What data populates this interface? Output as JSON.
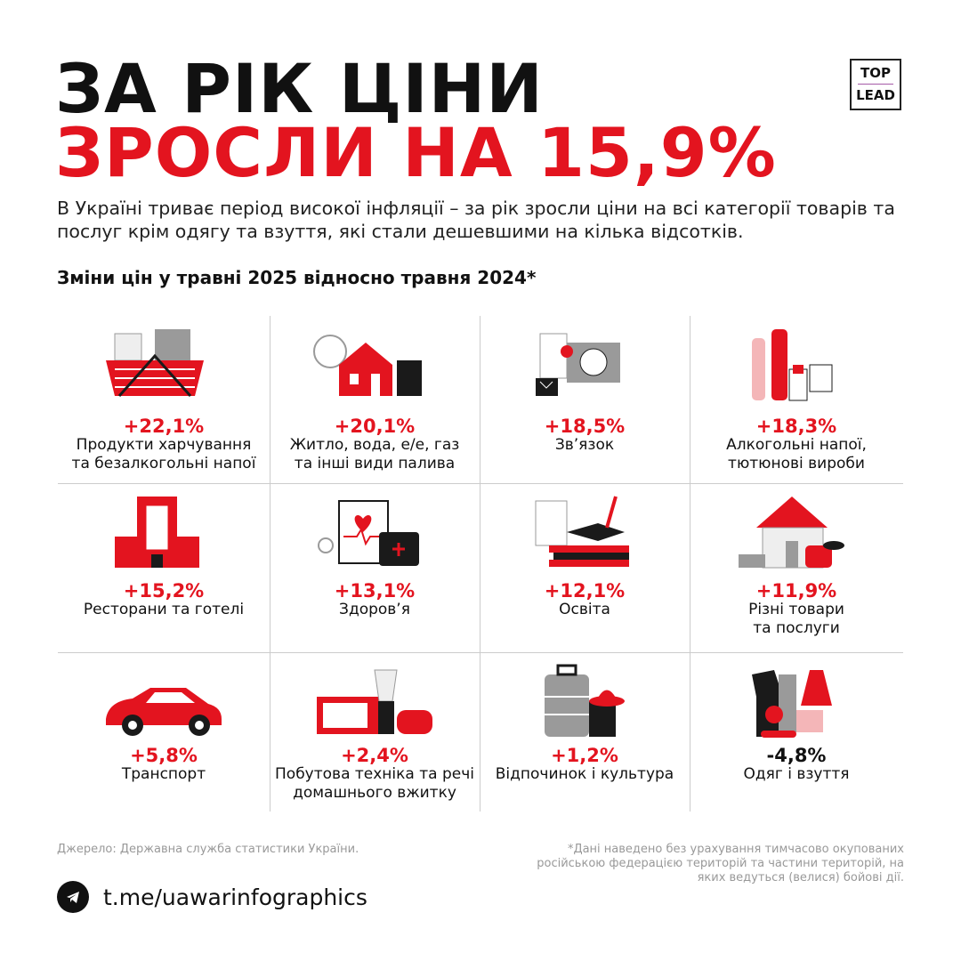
{
  "title": {
    "line1": "ЗА РІК ЦІНИ",
    "line2": "ЗРОСЛИ НА 15,9%"
  },
  "logo": {
    "top": "TOP",
    "bottom": "LEAD",
    "accent_color": "#a65ba8"
  },
  "intro": "В Україні триває період високої інфляції – за рік зросли ціни на всі категорії товарів та послуг крім одягу та взуття, які стали дешевшими на кілька відсотків.",
  "subtitle": "Зміни цін у травні 2025 відносно травня 2024*",
  "colors": {
    "accent": "#e3141f",
    "text": "#111111",
    "muted": "#999999"
  },
  "categories": [
    {
      "pct": "+22,1%",
      "label1": "Продукти харчування",
      "label2": "та безалкогольні напої",
      "icon": "grocery-basket-icon"
    },
    {
      "pct": "+20,1%",
      "label1": "Житло, вода, е/е, газ",
      "label2": "та інші види палива",
      "icon": "house-utilities-icon"
    },
    {
      "pct": "+18,5%",
      "label1": "Зв’язок",
      "label2": "",
      "icon": "communication-icon"
    },
    {
      "pct": "+18,3%",
      "label1": "Алкогольні напої,",
      "label2": "тютюнові вироби",
      "icon": "bottles-icon"
    },
    {
      "pct": "+15,2%",
      "label1": "Ресторани та готелі",
      "label2": "",
      "icon": "hotel-icon"
    },
    {
      "pct": "+13,1%",
      "label1": "Здоров’я",
      "label2": "",
      "icon": "medical-kit-icon"
    },
    {
      "pct": "+12,1%",
      "label1": "Освіта",
      "label2": "",
      "icon": "books-icon"
    },
    {
      "pct": "+11,9%",
      "label1": "Різні товари",
      "label2": "та послуги",
      "icon": "house-goods-icon"
    },
    {
      "pct": "+5,8%",
      "label1": "Транспорт",
      "label2": "",
      "icon": "car-icon"
    },
    {
      "pct": "+2,4%",
      "label1": "Побутова техніка та речі",
      "label2": "домашнього вжитку",
      "icon": "appliances-icon"
    },
    {
      "pct": "+1,2%",
      "label1": "Відпочинок і культура",
      "label2": "",
      "icon": "suitcase-icon"
    },
    {
      "pct": "-4,8%",
      "label1": "Одяг і взуття",
      "label2": "",
      "icon": "clothes-icon"
    }
  ],
  "footer": {
    "source": "Джерело: Державна служба статистики України.",
    "note": "*Дані наведено без урахування тимчасово окупованих російською федерацією територій та частини територій, на яких ведуться (велися) бойові дії.",
    "telegram": "t.me/uawarinfographics"
  }
}
